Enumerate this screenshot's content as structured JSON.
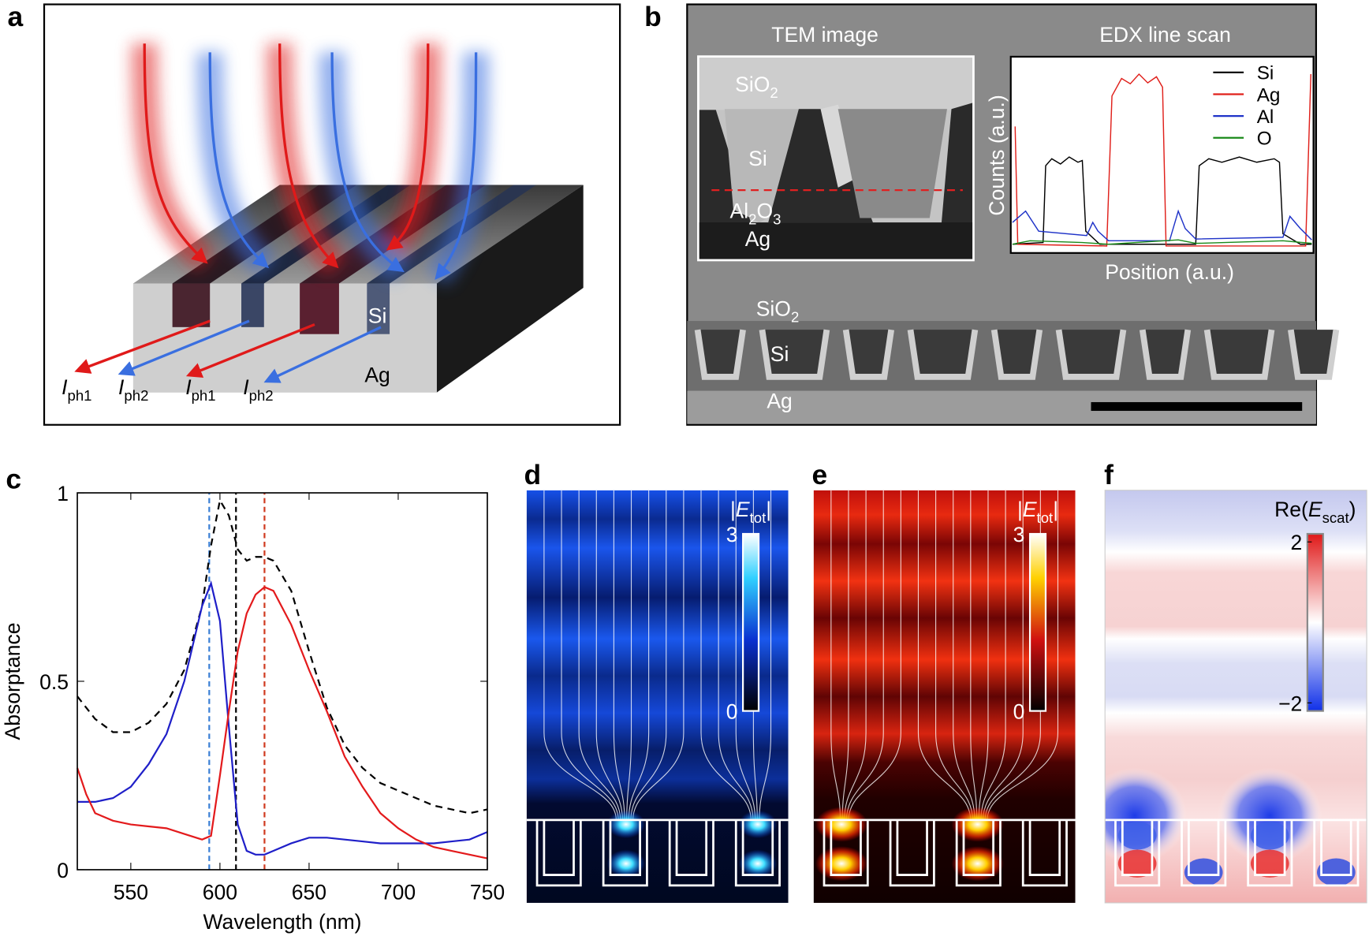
{
  "panel_a": {
    "label": "a",
    "si": "Si",
    "ag": "Ag",
    "currents": [
      {
        "var": "I",
        "sub": "ph1"
      },
      {
        "var": "I",
        "sub": "ph2"
      },
      {
        "var": "I",
        "sub": "ph1"
      },
      {
        "var": "I",
        "sub": "ph2"
      }
    ]
  },
  "panel_b": {
    "label": "b",
    "tem_title": "TEM image",
    "edx_title": "EDX line scan",
    "tem_labels": {
      "sio2": [
        "SiO",
        "2"
      ],
      "si": "Si",
      "al2o3": [
        "Al",
        "2",
        "O",
        "3"
      ],
      "ag": "Ag"
    },
    "edx": {
      "ylabel": "Counts (a.u.)",
      "xlabel": "Position (a.u.)",
      "legend": [
        {
          "name": "Si",
          "color": "#000000"
        },
        {
          "name": "Ag",
          "color": "#e0201b"
        },
        {
          "name": "Al",
          "color": "#1f33c8"
        },
        {
          "name": "O",
          "color": "#1a8a1a"
        }
      ]
    },
    "sem_labels": {
      "sio2": [
        "SiO",
        "2"
      ],
      "si": "Si",
      "ag": "Ag"
    }
  },
  "panel_c": {
    "label": "c",
    "type": "line",
    "xlabel": "Wavelength (nm)",
    "ylabel": "Absorptance",
    "xlim": [
      520,
      750
    ],
    "ylim": [
      0,
      1
    ],
    "xticks": [
      550,
      600,
      650,
      700,
      750
    ],
    "yticks": [
      0,
      0.5,
      1
    ],
    "x": [
      520,
      525,
      530,
      540,
      550,
      560,
      570,
      580,
      590,
      595,
      600,
      605,
      610,
      615,
      620,
      625,
      630,
      640,
      650,
      660,
      670,
      680,
      690,
      700,
      710,
      720,
      730,
      740,
      750
    ],
    "series": [
      {
        "color": "#000000",
        "dash": true,
        "values": [
          0.46,
          0.43,
          0.4,
          0.365,
          0.365,
          0.39,
          0.44,
          0.53,
          0.7,
          0.86,
          0.98,
          0.94,
          0.85,
          0.82,
          0.83,
          0.83,
          0.82,
          0.74,
          0.58,
          0.43,
          0.33,
          0.27,
          0.23,
          0.21,
          0.19,
          0.17,
          0.16,
          0.15,
          0.16
        ]
      },
      {
        "color": "#1f1fc8",
        "dash": false,
        "values": [
          0.18,
          0.18,
          0.18,
          0.19,
          0.22,
          0.28,
          0.36,
          0.5,
          0.7,
          0.76,
          0.66,
          0.38,
          0.12,
          0.05,
          0.04,
          0.04,
          0.05,
          0.07,
          0.085,
          0.085,
          0.08,
          0.075,
          0.07,
          0.07,
          0.07,
          0.07,
          0.075,
          0.08,
          0.1
        ]
      },
      {
        "color": "#e31a1c",
        "dash": false,
        "values": [
          0.27,
          0.2,
          0.15,
          0.13,
          0.12,
          0.115,
          0.11,
          0.095,
          0.08,
          0.09,
          0.25,
          0.42,
          0.58,
          0.68,
          0.73,
          0.75,
          0.74,
          0.65,
          0.53,
          0.42,
          0.3,
          0.22,
          0.15,
          0.11,
          0.08,
          0.06,
          0.05,
          0.04,
          0.03
        ]
      }
    ],
    "markers": [
      {
        "x": 594,
        "color": "#3a7fd5"
      },
      {
        "x": 609,
        "color": "#000000"
      },
      {
        "x": 625,
        "color": "#d03a20"
      }
    ]
  },
  "panel_d": {
    "label": "d",
    "colorbar": {
      "title": {
        "pre": "|",
        "var": "E",
        "sub": "tot",
        "post": "|"
      },
      "clim": [
        0,
        3
      ],
      "ticks": [
        3,
        0
      ]
    }
  },
  "panel_e": {
    "label": "e",
    "colorbar": {
      "title": {
        "pre": "|",
        "var": "E",
        "sub": "tot",
        "post": "|"
      },
      "clim": [
        0,
        3
      ],
      "ticks": [
        3,
        0
      ]
    }
  },
  "panel_f": {
    "label": "f",
    "colorbar": {
      "title": {
        "pre": "Re(",
        "var": "E",
        "sub": "scat",
        "post": ")"
      },
      "clim": [
        -2.2,
        2.2
      ],
      "ticks": [
        2,
        {
          "value": -2,
          "label": "−2"
        }
      ]
    }
  }
}
